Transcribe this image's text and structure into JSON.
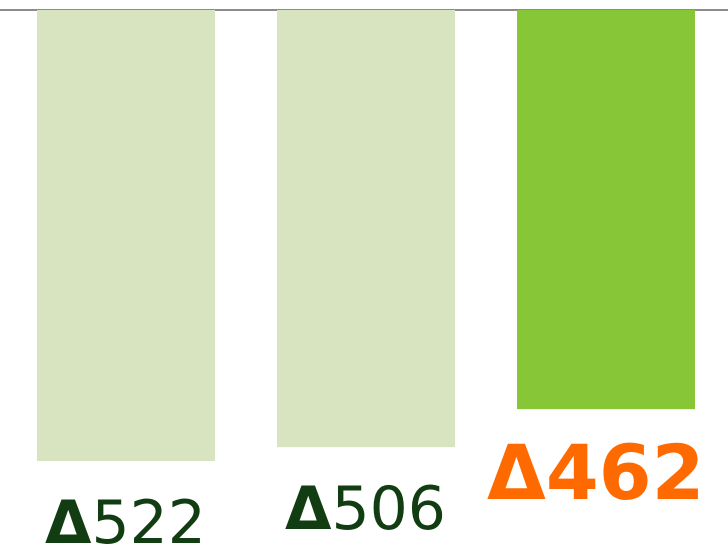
{
  "chart_data": {
    "type": "bar",
    "categories": [
      "",
      "",
      ""
    ],
    "values": [
      522,
      506,
      462
    ],
    "data_labels": [
      {
        "glyph": "Δ",
        "text": "522"
      },
      {
        "glyph": "Δ",
        "text": "506"
      },
      {
        "glyph": "Δ",
        "text": "462"
      }
    ],
    "highlight_index": 2,
    "colors": {
      "bar": "#d8e4c0",
      "bar_highlight": "#86c637",
      "label": "#123d12",
      "label_highlight": "#ff6a00",
      "axis": "#666666"
    },
    "ylim": [
      0,
      522
    ],
    "orientation": "top-anchored",
    "grid": false,
    "legend": "none",
    "title": "",
    "xlabel": "",
    "ylabel": ""
  }
}
